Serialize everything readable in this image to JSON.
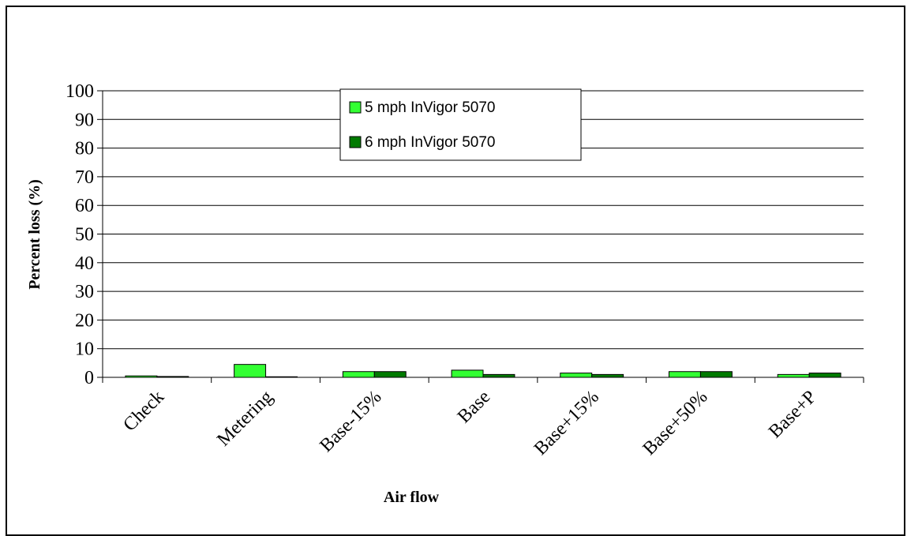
{
  "chart_data": {
    "type": "bar",
    "title": "",
    "xlabel": "Air flow",
    "ylabel": "Percent loss (%)",
    "ylim": [
      0,
      100
    ],
    "yticks": [
      0,
      10,
      20,
      30,
      40,
      50,
      60,
      70,
      80,
      90,
      100
    ],
    "grid": "horizontal",
    "legend_position": "top-center",
    "categories": [
      "Check",
      "Metering",
      "Base-15%",
      "Base",
      "Base+15%",
      "Base+50%",
      "Base+P"
    ],
    "series": [
      {
        "name": "5 mph InVigor 5070",
        "color": "#33ff33",
        "values": [
          0.5,
          4.5,
          2.0,
          2.5,
          1.5,
          2.0,
          1.0
        ]
      },
      {
        "name": "6 mph InVigor 5070",
        "color": "#007a00",
        "values": [
          0.3,
          0.2,
          2.0,
          1.0,
          1.0,
          2.0,
          1.5
        ]
      }
    ]
  }
}
